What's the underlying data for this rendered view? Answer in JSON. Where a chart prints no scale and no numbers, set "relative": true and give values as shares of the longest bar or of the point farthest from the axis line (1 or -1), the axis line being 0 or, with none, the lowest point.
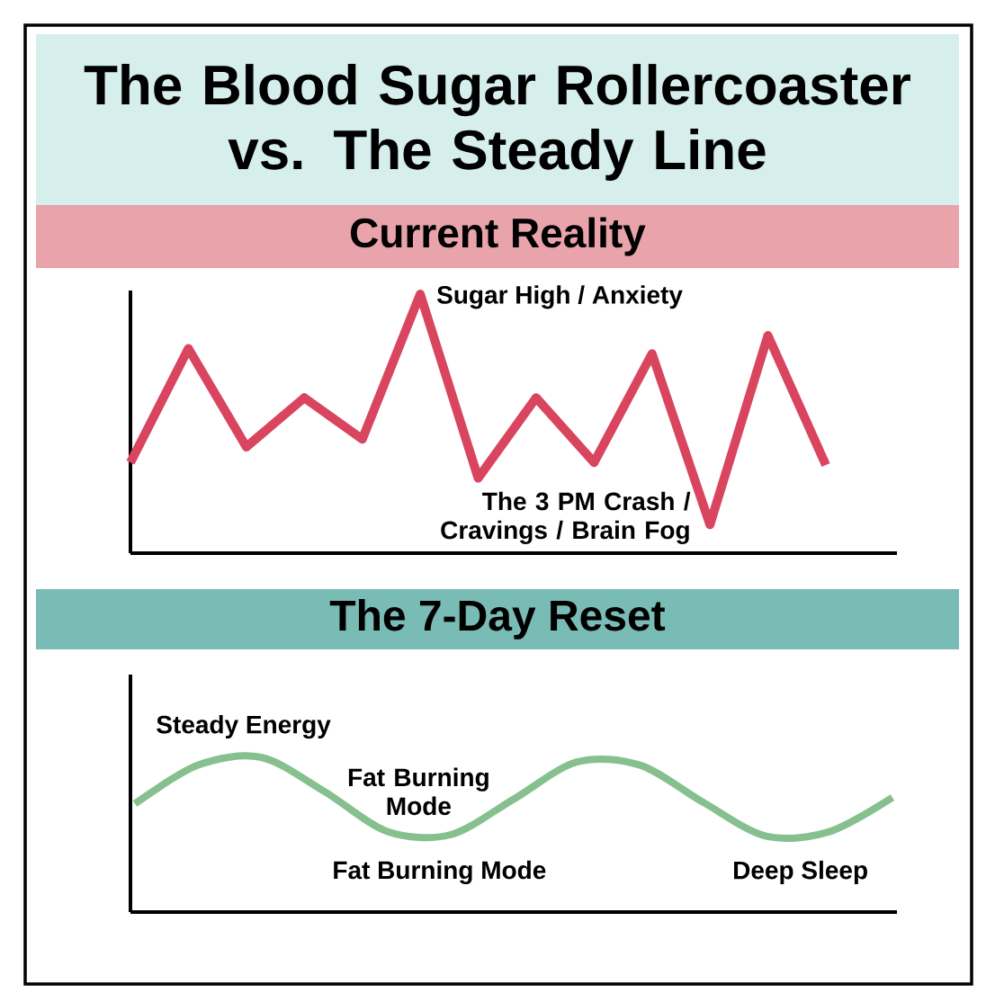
{
  "chart_data": [
    {
      "type": "line",
      "title": "The Blood Sugar Rollercoaster vs. The Steady Line",
      "subtitle": "Current Reality",
      "relative": true,
      "categories": [
        null,
        null,
        null,
        null,
        null,
        null,
        null,
        null,
        null,
        null,
        null,
        null,
        null
      ],
      "series": [
        {
          "color": "#d9455f",
          "values": [
            0.35,
            0.79,
            0.41,
            0.6,
            0.44,
            1.0,
            0.29,
            0.6,
            0.35,
            0.77,
            0.11,
            0.84,
            0.34
          ]
        }
      ],
      "annotations": [
        "Sugar High / Anxiety",
        "The 3 PM Crash / Cravings / Brain Fog"
      ]
    },
    {
      "type": "line",
      "subtitle": "The 7-Day Reset",
      "relative": true,
      "categories": [
        null,
        null,
        null,
        null,
        null,
        null,
        null,
        null,
        null,
        null,
        null,
        null,
        null
      ],
      "series": [
        {
          "color": "#86c08e",
          "values": [
            0.7,
            0.95,
            1.0,
            0.78,
            0.52,
            0.5,
            0.73,
            0.97,
            0.95,
            0.71,
            0.49,
            0.52,
            0.74
          ]
        }
      ],
      "annotations": [
        "Steady Energy",
        "Fat Burning Mode",
        "Fat Burning Mode",
        "Deep Sleep"
      ]
    }
  ]
}
